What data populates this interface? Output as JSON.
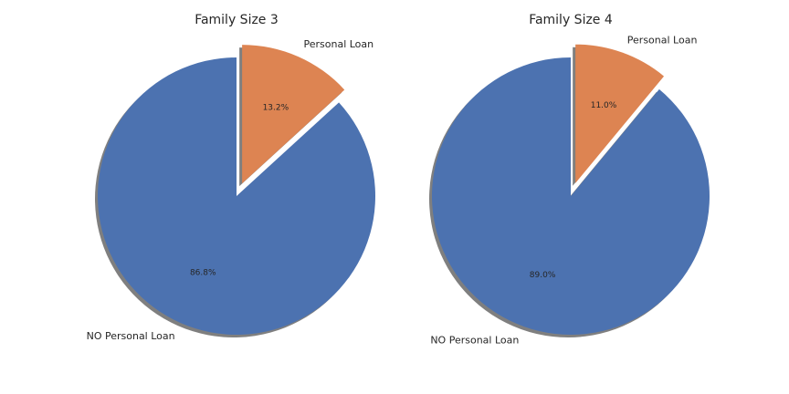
{
  "chart_data": [
    {
      "type": "pie",
      "title": "Family Size 3",
      "labels": [
        "NO Personal Loan",
        "Personal Loan"
      ],
      "values": [
        86.8,
        13.2
      ],
      "autopct": [
        "86.8%",
        "13.2%"
      ],
      "explode": [
        0,
        0.1
      ],
      "shadow": true,
      "colors": [
        "#4c72b0",
        "#dd8452"
      ]
    },
    {
      "type": "pie",
      "title": "Family Size 4",
      "labels": [
        "NO Personal Loan",
        "Personal Loan"
      ],
      "values": [
        89.0,
        11.0
      ],
      "autopct": [
        "89.0%",
        "11.0%"
      ],
      "explode": [
        0,
        0.1
      ],
      "shadow": true,
      "colors": [
        "#4c72b0",
        "#dd8452"
      ]
    }
  ]
}
